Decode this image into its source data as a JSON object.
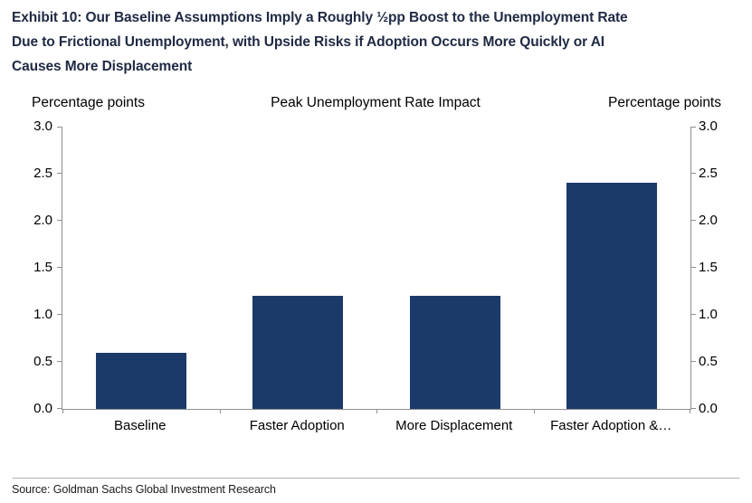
{
  "exhibit": {
    "title_full": "Exhibit 10: Our Baseline Assumptions Imply a Roughly ½pp Boost to the Unemployment Rate Due to Frictional Unemployment, with Upside Risks if Adoption Occurs More Quickly or AI Causes More Displacement",
    "title_lines": [
      "Exhibit 10: Our Baseline Assumptions Imply a Roughly ½pp Boost to the Unemployment Rate",
      "Due to Frictional Unemployment, with Upside Risks if Adoption Occurs More Quickly or AI",
      "Causes More Displacement"
    ]
  },
  "chart_data": {
    "type": "bar",
    "title": "Peak Unemployment Rate Impact",
    "left_axis_label": "Percentage points",
    "right_axis_label": "Percentage points",
    "categories": [
      "Baseline",
      "Faster Adoption",
      "More Displacement",
      "Faster Adoption &…"
    ],
    "values": [
      0.6,
      1.2,
      1.2,
      2.4
    ],
    "ylim": [
      0.0,
      3.0
    ],
    "yticks": [
      3.0,
      2.5,
      2.0,
      1.5,
      1.0,
      0.5,
      0.0
    ],
    "ytick_labels": [
      "3.0",
      "2.5",
      "2.0",
      "1.5",
      "1.0",
      "0.5",
      "0.0"
    ],
    "bar_color": "#1c3a69",
    "axis_color": "#909090",
    "grid": false,
    "legend": "none",
    "dual_axis": true
  },
  "source": {
    "text": "Source: Goldman Sachs Global Investment Research"
  }
}
